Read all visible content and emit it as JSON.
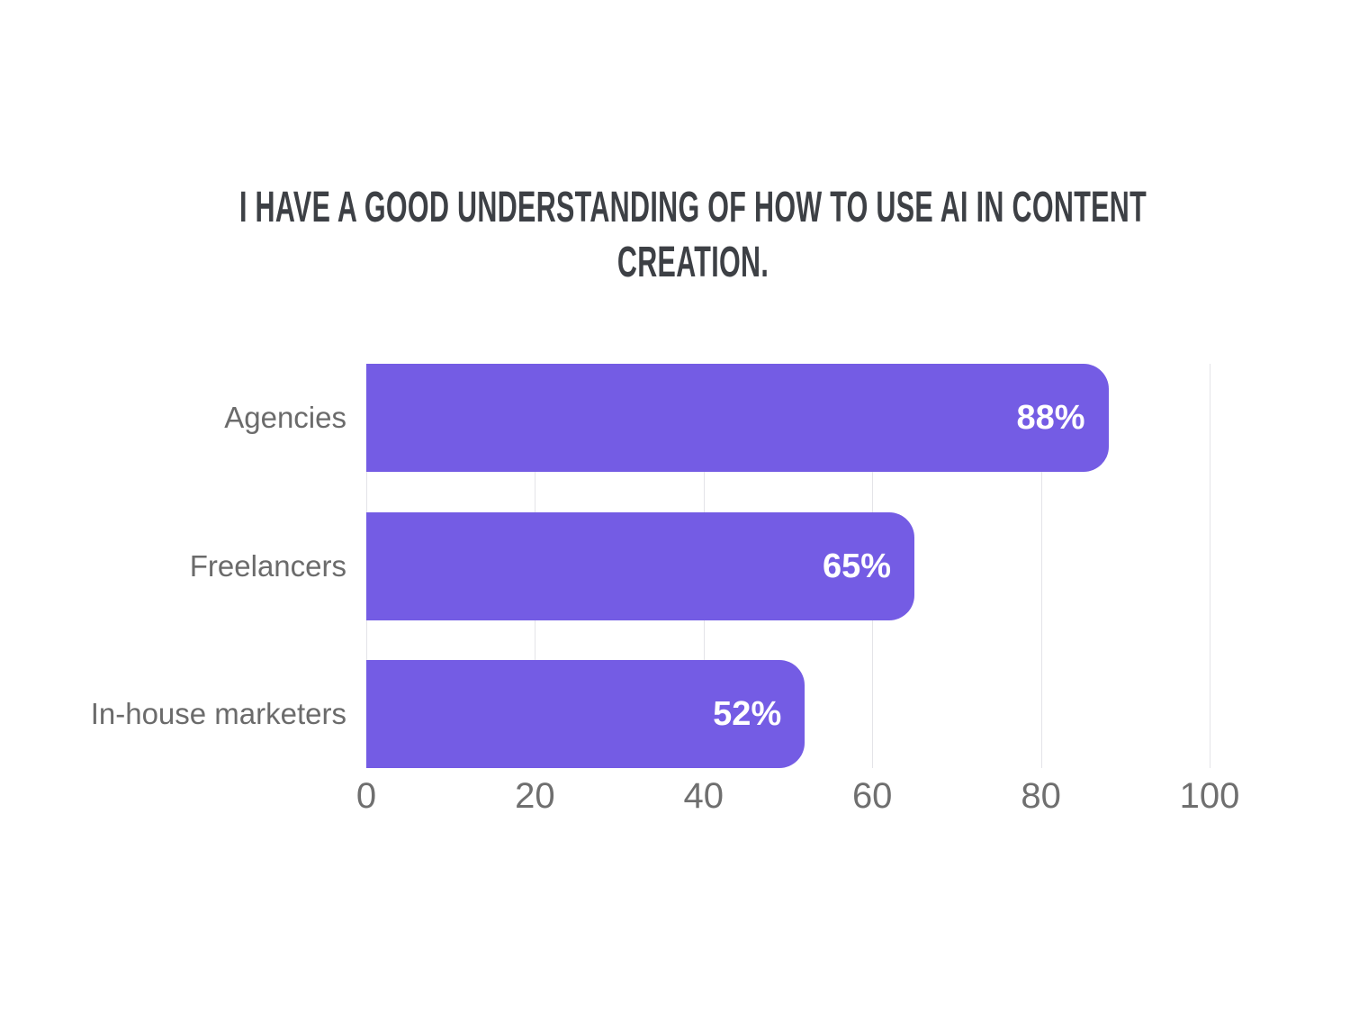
{
  "chart_data": {
    "type": "bar",
    "orientation": "horizontal",
    "title": "I have a good understanding of how to use AI in content creation.",
    "categories": [
      "Agencies",
      "Freelancers",
      "In-house marketers"
    ],
    "values": [
      88,
      65,
      52
    ],
    "value_labels": [
      "88%",
      "65%",
      "52%"
    ],
    "x_ticks": [
      0,
      20,
      40,
      60,
      80,
      100
    ],
    "xlim": [
      0,
      100
    ],
    "grid": {
      "vertical": true,
      "horizontal": false
    },
    "legend": "none",
    "colors": {
      "bar": "#745CE4",
      "value_label": "#FFFFFF",
      "category_label": "#6B6B6B",
      "tick_label": "#6F6F6F",
      "title": "#3D4045",
      "gridline": "#E4E4E8",
      "background": "#FFFFFF"
    }
  }
}
